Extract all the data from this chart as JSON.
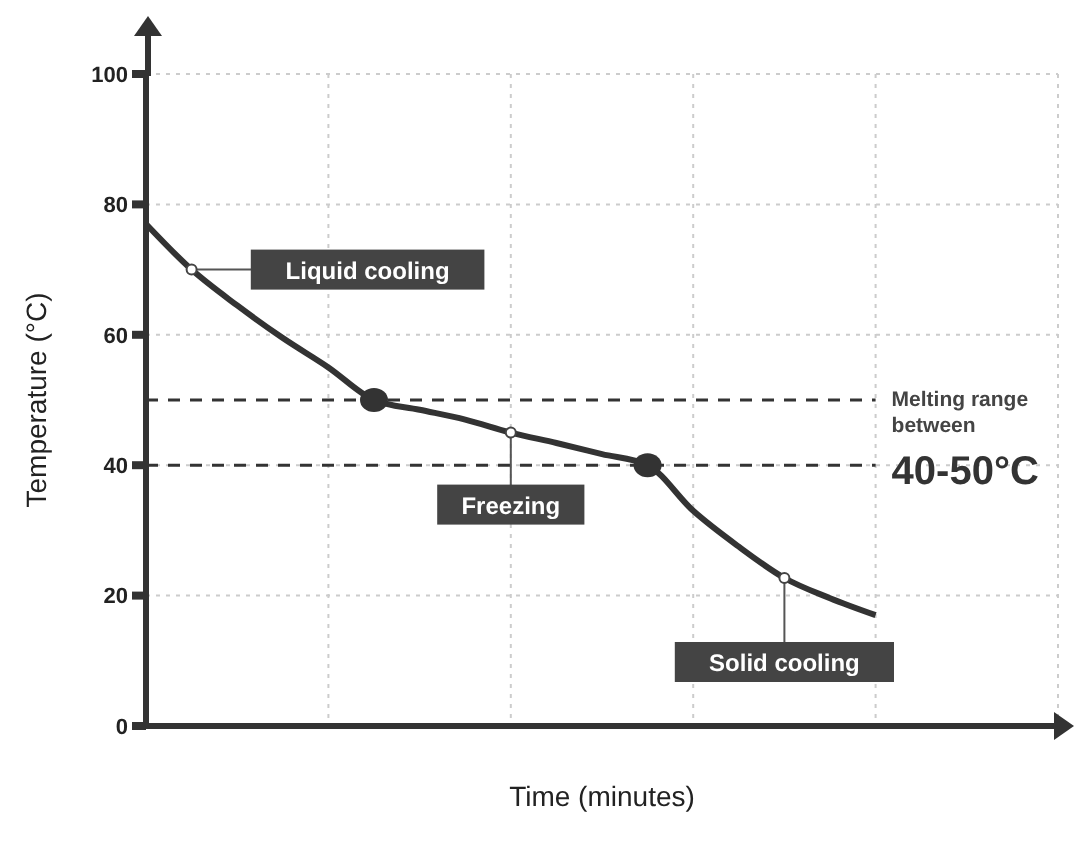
{
  "chart_data": {
    "type": "line",
    "xlabel": "Time (minutes)",
    "ylabel": "Temperature (°C)",
    "categories": [
      null,
      null,
      null,
      null,
      null,
      null,
      null,
      null,
      null,
      null,
      null,
      null,
      null,
      null,
      null,
      null,
      null,
      null,
      null,
      null,
      null
    ],
    "series": [
      {
        "color": "#333333",
        "values": [
          77,
          70,
          64.5,
          59.5,
          55,
          50,
          48.5,
          47,
          45,
          43.4,
          41.7,
          40,
          33,
          27.5,
          22.7,
          19.6,
          17,
          null,
          null,
          null,
          null
        ]
      },
      {
        "type": "scatter",
        "color": "#333333",
        "marker": "circle",
        "values": [
          null,
          null,
          null,
          null,
          null,
          50,
          null,
          null,
          null,
          null,
          null,
          40,
          null,
          null,
          null,
          null,
          null,
          null,
          null,
          null,
          null
        ]
      }
    ],
    "ylim": [
      0,
      100
    ],
    "yticks": [
      0,
      20,
      40,
      60,
      80,
      100
    ],
    "grid": true,
    "tick_labels": "y",
    "marker": "none",
    "line_style": "solid",
    "ref_lines": [
      {
        "axis": "y",
        "value": 50,
        "line_style": "dashed",
        "color": "#333333"
      },
      {
        "axis": "y",
        "value": 40,
        "line_style": "dashed",
        "color": "#333333"
      }
    ],
    "annotations": [
      "Liquid cooling",
      "Freezing",
      "Solid cooling",
      "Melting range between",
      "40-50°C"
    ]
  }
}
